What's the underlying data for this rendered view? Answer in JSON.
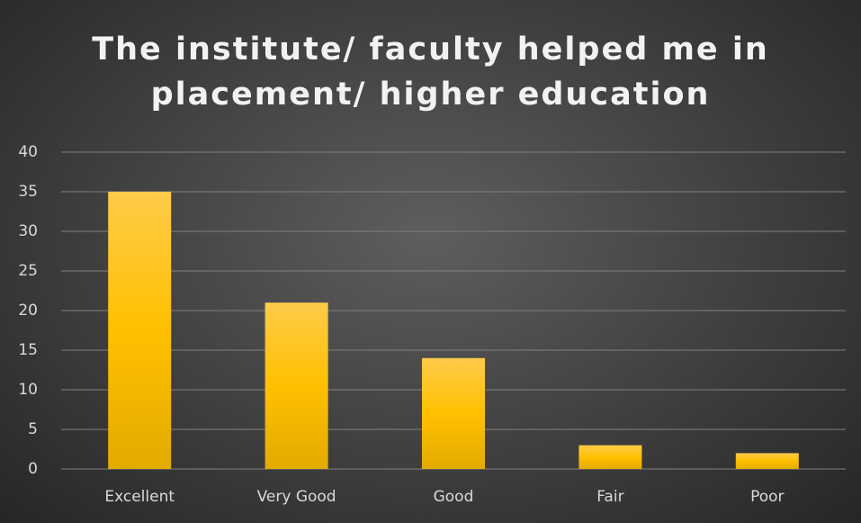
{
  "chart_data": {
    "type": "bar",
    "title": "The institute/ faculty helped me in placement/ higher education",
    "categories": [
      "Excellent",
      "Very Good",
      "Good",
      "Fair",
      "Poor"
    ],
    "values": [
      35,
      21,
      14,
      3,
      2
    ],
    "color": "#ffc000",
    "ylim": [
      0,
      40
    ],
    "yticks": [
      0,
      5,
      10,
      15,
      20,
      25,
      30,
      35,
      40
    ],
    "grid": true
  }
}
